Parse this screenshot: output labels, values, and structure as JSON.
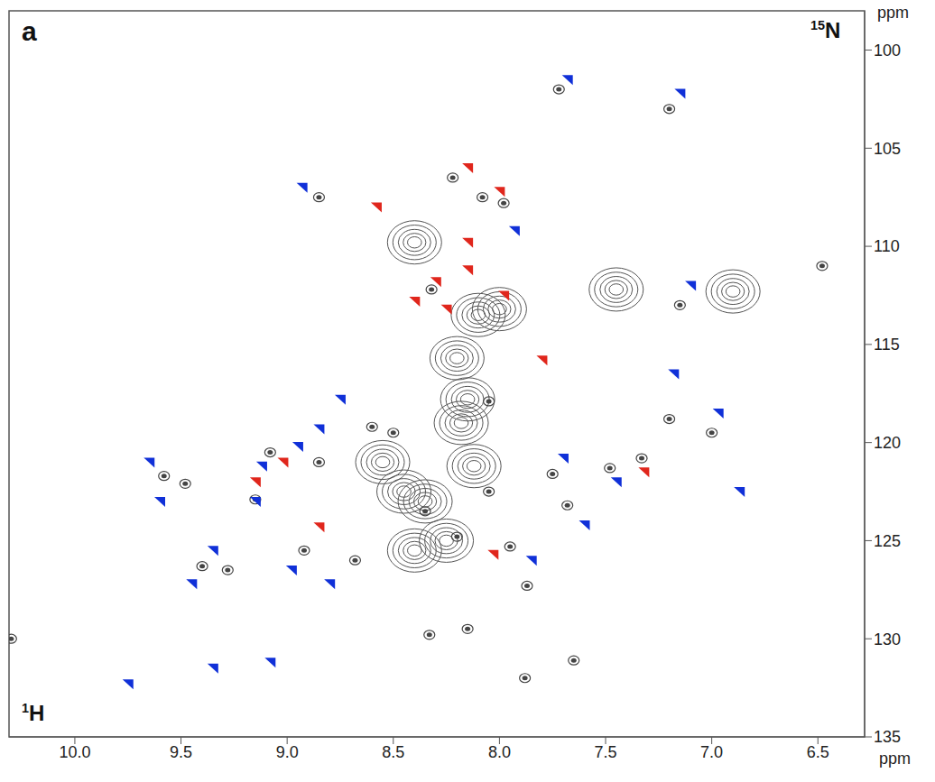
{
  "chart_data": {
    "type": "scatter",
    "panel_label": "a",
    "x_label": "1H",
    "y_label": "15N",
    "x_unit": "ppm",
    "y_unit": "ppm",
    "xlim": [
      10.31,
      6.28
    ],
    "ylim": [
      135,
      98
    ],
    "xticks": [
      {
        "value": 10,
        "label": "10.0"
      },
      9.5,
      {
        "value": 9,
        "label": "9.0"
      },
      8.5,
      {
        "value": 8,
        "label": "8.0"
      },
      7.5,
      {
        "value": 7,
        "label": "7.0"
      },
      6.5
    ],
    "yticks": [
      100,
      105,
      110,
      115,
      120,
      125,
      130,
      135
    ],
    "grid": false,
    "series": [
      {
        "marker": "blob",
        "color": "#555555",
        "x": [
          8.4,
          7.45,
          6.9,
          8.35,
          8.12,
          8.45,
          8.18,
          8.15,
          8.2,
          8.1,
          8.0,
          8.4,
          8.25,
          8.55
        ],
        "y": [
          109.8,
          112.2,
          112.3,
          123,
          121.2,
          122.5,
          119,
          117.8,
          115.7,
          113.5,
          113.2,
          125.5,
          125,
          121
        ]
      },
      {
        "marker": "circle",
        "color": "#444444",
        "x": [
          10.3,
          9.58,
          9.48,
          9.4,
          9.28,
          9.15,
          9.08,
          8.92,
          8.85,
          8.68,
          8.6,
          8.5,
          8.32,
          8.22,
          8.08,
          7.98,
          8.85,
          8.33,
          8.15,
          7.88,
          7.65,
          7.87,
          7.95,
          7.75,
          7.68,
          7.48,
          7.33,
          7.15,
          7.2,
          7.72,
          7.2,
          7.0,
          6.48,
          8.05,
          8.2,
          8.35,
          8.05
        ],
        "y": [
          130,
          121.7,
          122.1,
          126.3,
          126.5,
          122.9,
          120.5,
          125.5,
          121,
          126,
          119.2,
          119.5,
          112.2,
          106.5,
          107.5,
          107.8,
          107.5,
          129.8,
          129.5,
          132,
          131.1,
          127.3,
          125.3,
          121.6,
          123.2,
          121.3,
          120.8,
          113,
          103,
          102,
          118.8,
          119.5,
          111,
          117.9,
          124.8,
          123.5,
          122.5
        ]
      },
      {
        "marker": "triangle",
        "color": "#e0261c",
        "x": [
          8.15,
          8.0,
          8.58,
          8.15,
          8.15,
          8.3,
          8.4,
          8.25,
          7.98,
          7.8,
          9.02,
          9.15,
          8.85,
          8.03,
          7.32
        ],
        "y": [
          106,
          107.2,
          108,
          109.8,
          111.2,
          111.8,
          112.8,
          113.2,
          112.5,
          115.8,
          121,
          122,
          124.3,
          125.7,
          121.5
        ]
      },
      {
        "marker": "triangle",
        "color": "#1030d8",
        "x": [
          7.68,
          7.15,
          8.93,
          7.93,
          7.1,
          7.18,
          6.97,
          8.75,
          8.85,
          8.95,
          9.12,
          9.65,
          9.6,
          9.15,
          7.7,
          7.45,
          7.6,
          6.87,
          9.35,
          9.45,
          8.98,
          8.8,
          7.85,
          9.35,
          9.08,
          9.75
        ],
        "y": [
          101.5,
          102.2,
          107,
          109.2,
          112,
          116.5,
          118.5,
          117.8,
          119.3,
          120.2,
          121.2,
          121,
          123,
          123,
          120.8,
          122,
          124.2,
          122.5,
          125.5,
          127.2,
          126.5,
          127.2,
          126,
          131.5,
          131.2,
          132.3
        ]
      }
    ]
  }
}
